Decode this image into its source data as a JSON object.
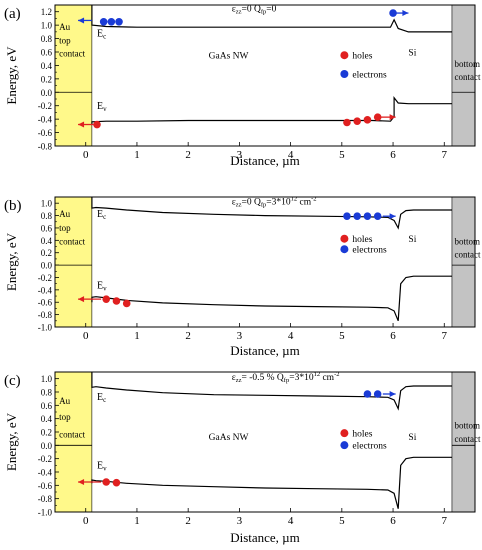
{
  "chart_data": [
    {
      "panel_label": "(a)",
      "type": "line",
      "xlabel": "Distance, µm",
      "ylabel": "Energy, eV",
      "xlim": [
        -0.6,
        7.6
      ],
      "ylim": [
        -0.8,
        1.3
      ],
      "x_ticks": [
        "0",
        "1",
        "2",
        "3",
        "4",
        "5",
        "6",
        "7"
      ],
      "y_ticks": [
        "-0.8",
        "-0.6",
        "-0.4",
        "-0.2",
        "0.0",
        "0.2",
        "0.4",
        "0.6",
        "0.8",
        "1.0",
        "1.2"
      ],
      "annotation": {
        "eps": "ε",
        "eps_sub": "zz",
        "eps_val": "=0",
        "q": "Q",
        "q_sub": "fp",
        "q_val": "=0",
        "q_sup": ""
      },
      "labels": {
        "gaas": "GaAs NW",
        "si": "Si",
        "ec": "E",
        "ec_sub": "c",
        "ev": "E",
        "ev_sub": "v"
      },
      "left_contact": [
        "Au",
        "top",
        "contact"
      ],
      "right_contact": [
        "bottom",
        "contact"
      ],
      "legend": {
        "holes": "holes",
        "electrons": "electrons"
      },
      "series": [
        {
          "name": "Ec",
          "x": [
            0.12,
            0.12,
            0.4,
            1.0,
            2.0,
            3.0,
            4.0,
            5.0,
            5.6,
            5.95,
            6.02,
            6.1,
            6.3,
            7.15
          ],
          "y": [
            1.3,
            1.0,
            0.98,
            0.97,
            0.97,
            0.97,
            0.97,
            0.97,
            0.97,
            0.97,
            1.08,
            0.95,
            0.9,
            0.9
          ]
        },
        {
          "name": "Ev",
          "x": [
            0.12,
            0.12,
            0.4,
            1.0,
            2.0,
            3.0,
            4.0,
            5.0,
            5.6,
            5.95,
            6.02,
            6.02,
            6.1,
            6.3,
            7.15
          ],
          "y": [
            -0.48,
            -0.44,
            -0.43,
            -0.43,
            -0.42,
            -0.42,
            -0.42,
            -0.42,
            -0.42,
            -0.43,
            -0.36,
            -0.08,
            -0.16,
            -0.17,
            -0.17
          ]
        }
      ],
      "holes": {
        "x": [
          0.22,
          5.1,
          5.3,
          5.5,
          5.7
        ],
        "y": [
          -0.48,
          -0.45,
          -0.43,
          -0.41,
          -0.37
        ]
      },
      "electrons": {
        "x": [
          0.35,
          0.5,
          0.65,
          6.0
        ],
        "y": [
          1.05,
          1.05,
          1.05,
          1.18
        ]
      },
      "arrows": [
        {
          "x1": 0.12,
          "y1": 1.07,
          "x2": -0.15,
          "y2": 1.07,
          "color": "#1a3bd6"
        },
        {
          "x1": 6.05,
          "y1": 1.18,
          "x2": 6.3,
          "y2": 1.18,
          "color": "#1a3bd6"
        },
        {
          "x1": 0.15,
          "y1": -0.48,
          "x2": -0.15,
          "y2": -0.48,
          "color": "#e02020"
        },
        {
          "x1": 5.75,
          "y1": -0.37,
          "x2": 6.05,
          "y2": -0.37,
          "color": "#e02020"
        }
      ],
      "layout": {
        "title_x": 2.85,
        "title_y": 1.2,
        "gaas_x": 2.4,
        "gaas_y": 0.5,
        "si_x": 6.3,
        "si_y": 0.55,
        "ec_x": 0.22,
        "ec_y": 0.83,
        "ev_x": 0.22,
        "ev_y": -0.25,
        "legend_x": 5.05,
        "legend_y1": 0.5,
        "legend_y2": 0.22,
        "contact_y": [
          0.93,
          0.73,
          0.53
        ],
        "bcontact_y": [
          0.38,
          0.18
        ]
      }
    },
    {
      "panel_label": "(b)",
      "type": "line",
      "xlabel": "Distance, µm",
      "ylabel": "Energy, eV",
      "xlim": [
        -0.6,
        7.6
      ],
      "ylim": [
        -1.0,
        1.1
      ],
      "x_ticks": [
        "0",
        "1",
        "2",
        "3",
        "4",
        "5",
        "6",
        "7"
      ],
      "y_ticks": [
        "-1.0",
        "-0.8",
        "-0.6",
        "-0.4",
        "-0.2",
        "0.0",
        "0.2",
        "0.4",
        "0.6",
        "0.8",
        "1.0"
      ],
      "annotation": {
        "eps": "ε",
        "eps_sub": "zz",
        "eps_val": "=0",
        "q": "Q",
        "q_sub": "fp",
        "q_val": "=3*10",
        "q_sup": "12",
        "q_unit": " cm",
        "q_unit_sup": "-2"
      },
      "labels": {
        "gaas": "",
        "si": "Si",
        "ec": "E",
        "ec_sub": "c",
        "ev": "E",
        "ev_sub": "v"
      },
      "left_contact": [
        "Au",
        "top",
        "contact"
      ],
      "right_contact": [
        "bottom",
        "contact"
      ],
      "legend": {
        "holes": "holes",
        "electrons": "electrons"
      },
      "series": [
        {
          "name": "Ec",
          "x": [
            0.12,
            0.12,
            0.2,
            0.4,
            0.8,
            1.5,
            2.5,
            3.5,
            4.5,
            5.5,
            5.9,
            6.02,
            6.1,
            6.15,
            6.25,
            6.4,
            7.15
          ],
          "y": [
            1.1,
            0.92,
            0.93,
            0.92,
            0.89,
            0.85,
            0.82,
            0.8,
            0.79,
            0.78,
            0.77,
            0.72,
            0.6,
            0.82,
            0.88,
            0.89,
            0.89
          ]
        },
        {
          "name": "Ev",
          "x": [
            0.12,
            0.12,
            0.2,
            0.4,
            0.8,
            1.5,
            2.5,
            3.5,
            4.5,
            5.5,
            5.9,
            6.02,
            6.1,
            6.15,
            6.25,
            6.4,
            7.15
          ],
          "y": [
            -0.6,
            -0.52,
            -0.51,
            -0.53,
            -0.57,
            -0.61,
            -0.64,
            -0.66,
            -0.67,
            -0.68,
            -0.69,
            -0.74,
            -0.9,
            -0.3,
            -0.2,
            -0.18,
            -0.18
          ]
        }
      ],
      "holes": {
        "x": [
          0.4,
          0.6,
          0.8
        ],
        "y": [
          -0.55,
          -0.58,
          -0.62
        ]
      },
      "electrons": {
        "x": [
          5.1,
          5.3,
          5.5,
          5.7
        ],
        "y": [
          0.79,
          0.79,
          0.79,
          0.79
        ]
      },
      "arrows": [
        {
          "x1": 5.8,
          "y1": 0.79,
          "x2": 6.05,
          "y2": 0.79,
          "color": "#1a3bd6"
        },
        {
          "x1": 0.3,
          "y1": -0.55,
          "x2": -0.15,
          "y2": -0.55,
          "color": "#e02020"
        }
      ],
      "layout": {
        "title_x": 2.85,
        "title_y": 0.98,
        "gaas_x": 2.4,
        "gaas_y": 0.3,
        "si_x": 6.3,
        "si_y": 0.37,
        "ec_x": 0.22,
        "ec_y": 0.78,
        "ev_x": 0.22,
        "ev_y": -0.38,
        "legend_x": 5.05,
        "legend_y1": 0.37,
        "legend_y2": 0.2,
        "contact_y": [
          0.78,
          0.55,
          0.33
        ],
        "bcontact_y": [
          0.33,
          0.12
        ]
      }
    },
    {
      "panel_label": "(c)",
      "type": "line",
      "xlabel": "Distance, µm",
      "ylabel": "Energy, eV",
      "xlim": [
        -0.6,
        7.6
      ],
      "ylim": [
        -1.0,
        1.1
      ],
      "x_ticks": [
        "0",
        "1",
        "2",
        "3",
        "4",
        "5",
        "6",
        "7"
      ],
      "y_ticks": [
        "-1.0",
        "-0.8",
        "-0.6",
        "-0.4",
        "-0.2",
        "0.0",
        "0.2",
        "0.4",
        "0.6",
        "0.8",
        "1.0"
      ],
      "annotation": {
        "eps": "ε",
        "eps_sub": "zz",
        "eps_val": "= -0.5 %",
        "q": "Q",
        "q_sub": "fp",
        "q_val": "=3*10",
        "q_sup": "12",
        "q_unit": " cm",
        "q_unit_sup": "-2"
      },
      "labels": {
        "gaas": "GaAs NW",
        "si": "Si",
        "ec": "E",
        "ec_sub": "c",
        "ev": "E",
        "ev_sub": "v"
      },
      "left_contact": [
        "Au",
        "top",
        "contact"
      ],
      "right_contact": [
        "bottom",
        "contact"
      ],
      "legend": {
        "holes": "holes",
        "electrons": "electrons"
      },
      "series": [
        {
          "name": "Ec",
          "x": [
            0.12,
            0.12,
            0.2,
            0.4,
            0.8,
            1.5,
            2.5,
            3.5,
            4.5,
            5.5,
            5.9,
            6.02,
            6.1,
            6.15,
            6.25,
            6.4,
            7.15
          ],
          "y": [
            1.1,
            0.87,
            0.88,
            0.86,
            0.83,
            0.79,
            0.76,
            0.75,
            0.74,
            0.73,
            0.72,
            0.68,
            0.55,
            0.82,
            0.88,
            0.89,
            0.89
          ]
        },
        {
          "name": "Ev",
          "x": [
            0.12,
            0.12,
            0.2,
            0.4,
            0.8,
            1.5,
            2.5,
            3.5,
            4.5,
            5.5,
            5.9,
            6.02,
            6.1,
            6.15,
            6.25,
            6.4,
            7.15
          ],
          "y": [
            -0.57,
            -0.52,
            -0.53,
            -0.54,
            -0.57,
            -0.6,
            -0.62,
            -0.64,
            -0.65,
            -0.66,
            -0.67,
            -0.72,
            -0.95,
            -0.3,
            -0.2,
            -0.18,
            -0.18
          ]
        }
      ],
      "holes": {
        "x": [
          0.4,
          0.6
        ],
        "y": [
          -0.55,
          -0.56
        ]
      },
      "electrons": {
        "x": [
          5.5,
          5.7
        ],
        "y": [
          0.77,
          0.77
        ]
      },
      "arrows": [
        {
          "x1": 5.8,
          "y1": 0.77,
          "x2": 6.05,
          "y2": 0.77,
          "color": "#1a3bd6"
        },
        {
          "x1": 0.3,
          "y1": -0.55,
          "x2": -0.15,
          "y2": -0.55,
          "color": "#e02020"
        }
      ],
      "layout": {
        "title_x": 2.85,
        "title_y": 0.98,
        "gaas_x": 2.4,
        "gaas_y": 0.08,
        "si_x": 6.3,
        "si_y": 0.08,
        "ec_x": 0.22,
        "ec_y": 0.68,
        "ev_x": 0.22,
        "ev_y": -0.35,
        "legend_x": 5.05,
        "legend_y1": 0.13,
        "legend_y2": -0.05,
        "contact_y": [
          0.62,
          0.38,
          0.12
        ],
        "bcontact_y": [
          0.25,
          0.05
        ]
      }
    }
  ],
  "colors": {
    "au_contact": "#fff98a",
    "bottom_contact": "#c3c3c3",
    "holes": "#e02020",
    "electrons": "#1a3bd6",
    "line": "#000000"
  }
}
